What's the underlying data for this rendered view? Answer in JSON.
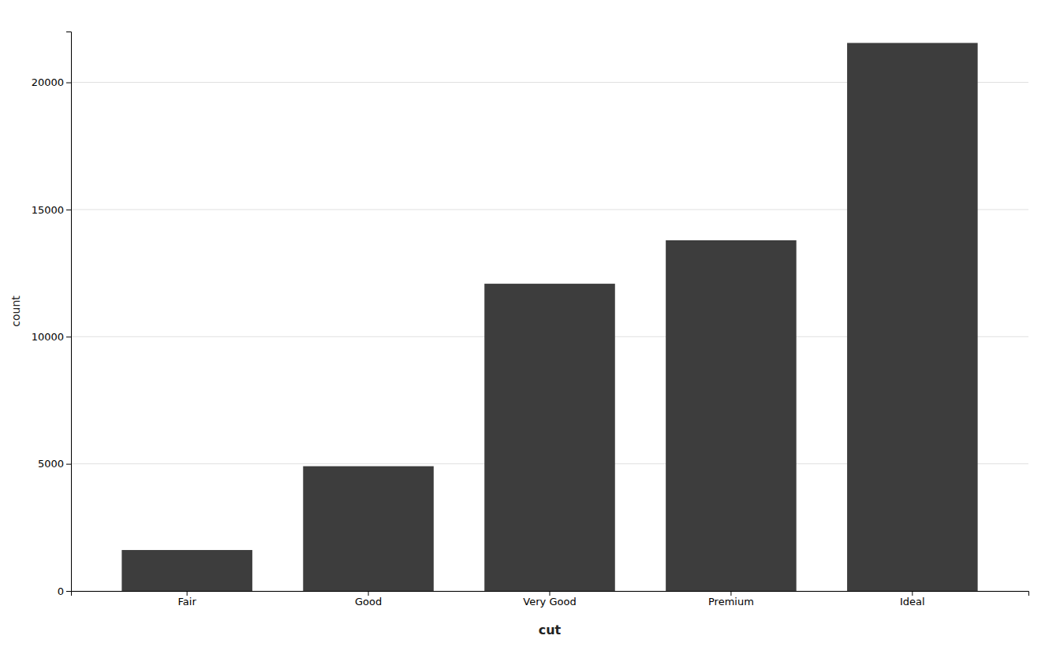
{
  "chart_data": {
    "type": "bar",
    "categories": [
      "Fair",
      "Good",
      "Very Good",
      "Premium",
      "Ideal"
    ],
    "values": [
      1610,
      4906,
      12082,
      13791,
      21551
    ],
    "color": "#3d3d3d",
    "xlabel": "cut",
    "ylabel": "count",
    "ylim": [
      0,
      22000
    ],
    "yticks": [
      0,
      5000,
      10000,
      15000,
      20000
    ],
    "grid": true
  }
}
